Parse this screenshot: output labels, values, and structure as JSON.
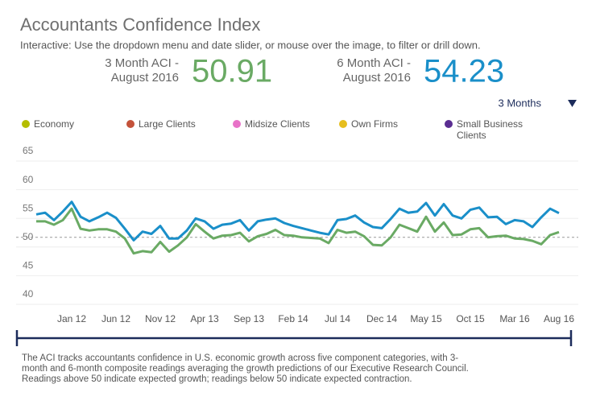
{
  "title": "Accountants Confidence Index",
  "subtitle": "Interactive: Use the dropdown menu and date slider, or mouse over the image, to filter or drill down.",
  "kpis": [
    {
      "label": [
        "3 Month ACI -",
        "August 2016"
      ],
      "value": 50.91,
      "color": "#6aaa64"
    },
    {
      "label": [
        "6 Month ACI -",
        "August 2016"
      ],
      "value": 54.23,
      "color": "#1a8fc9"
    }
  ],
  "dropdown": "3 Months",
  "chart_data": {
    "type": "line",
    "legend_items": [
      {
        "name": "Economy",
        "color": "#b5bd00"
      },
      {
        "name": "Large Clients",
        "color": "#c4523a"
      },
      {
        "name": "Midsize Clients",
        "color": "#e872c8"
      },
      {
        "name": "Own Firms",
        "color": "#e6be1e"
      },
      {
        "name": [
          "Small Business",
          "Clients"
        ],
        "color": "#5a2d91"
      }
    ],
    "categories": [
      null,
      null,
      null,
      null,
      "Jan 12",
      null,
      null,
      null,
      null,
      "Jun 12",
      null,
      null,
      null,
      null,
      "Nov 12",
      null,
      null,
      null,
      null,
      "Apr 13",
      null,
      null,
      null,
      null,
      "Sep 13",
      null,
      null,
      null,
      null,
      "Feb 14",
      null,
      null,
      null,
      null,
      "Jul 14",
      null,
      null,
      null,
      null,
      "Dec 14",
      null,
      null,
      null,
      null,
      "May 15",
      null,
      null,
      null,
      null,
      "Oct 15",
      null,
      null,
      null,
      null,
      "Mar 16",
      null,
      null,
      null,
      null,
      "Aug 16"
    ],
    "series": [
      {
        "color": "#1a8fc9",
        "values": [
          54.0,
          54.3,
          53.0,
          54.5,
          56.2,
          53.6,
          52.8,
          53.5,
          54.3,
          53.4,
          51.5,
          49.5,
          51.0,
          50.6,
          52.0,
          49.8,
          49.8,
          51.2,
          53.3,
          52.8,
          51.5,
          52.2,
          52.4,
          53.0,
          51.2,
          52.8,
          53.1,
          53.3,
          52.5,
          52.0,
          51.6,
          51.2,
          50.8,
          50.5,
          53.0,
          53.2,
          53.8,
          52.6,
          51.8,
          51.6,
          53.2,
          55.0,
          54.3,
          54.5,
          56.0,
          53.8,
          55.8,
          53.8,
          53.3,
          54.8,
          55.2,
          53.5,
          53.6,
          52.3,
          53.0,
          52.8,
          51.8,
          53.5,
          55.0,
          54.23
        ]
      },
      {
        "color": "#6aaa64",
        "values": [
          52.8,
          52.8,
          52.2,
          53.0,
          55.0,
          51.5,
          51.2,
          51.4,
          51.4,
          51.0,
          49.8,
          47.2,
          47.6,
          47.4,
          49.2,
          47.5,
          48.6,
          50.0,
          52.3,
          51.0,
          49.8,
          50.3,
          50.4,
          50.8,
          49.3,
          50.2,
          50.6,
          51.3,
          50.4,
          50.3,
          50.0,
          49.9,
          49.8,
          49.0,
          51.3,
          50.8,
          51.0,
          50.2,
          48.7,
          48.6,
          50.0,
          52.2,
          51.6,
          51.0,
          53.6,
          51.0,
          52.6,
          50.4,
          50.5,
          51.4,
          51.6,
          50.0,
          50.2,
          50.3,
          49.8,
          49.7,
          49.4,
          48.8,
          50.4,
          50.91
        ]
      }
    ],
    "ylim": [
      40,
      65
    ],
    "yticks": [
      40,
      45,
      50,
      55,
      60,
      65
    ],
    "grid": true,
    "reference_line": 50
  },
  "footnote": "The ACI tracks accountants confidence in U.S. economic growth across five component categories, with 3-month and 6-month composite readings averaging the growth predictions of our Executive Research Council. Readings above 50 indicate expected growth; readings below 50 indicate expected contraction."
}
